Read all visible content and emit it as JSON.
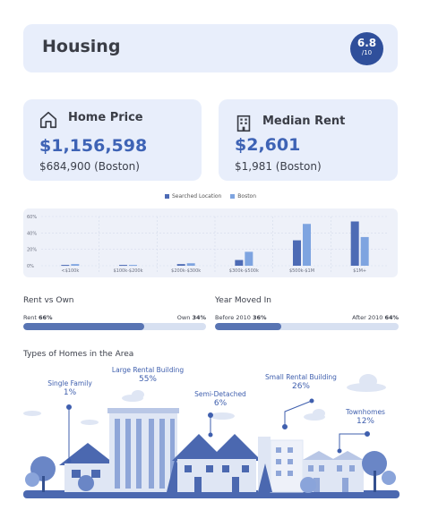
{
  "header": {
    "title": "Housing",
    "score": "6.8",
    "score_denominator": "/10"
  },
  "home_price": {
    "label": "Home Price",
    "value": "$1,156,598",
    "comparison": "$684,900 (Boston)",
    "icon": "house-outline-icon"
  },
  "median_rent": {
    "label": "Median Rent",
    "value": "$2,601",
    "comparison": "$1,981 (Boston)",
    "icon": "apartment-building-icon"
  },
  "legend": {
    "searched": "Searched Location",
    "boston": "Boston"
  },
  "colors": {
    "searched": "#4d6bb5",
    "boston": "#7ea4e0",
    "fill": "#5874b3",
    "track": "#d7e0f1",
    "card_bg": "#e8eefb",
    "accent": "#3e63b5"
  },
  "chart_data": {
    "type": "bar",
    "categories": [
      "<$100k",
      "$100k-$200k",
      "$200k-$300k",
      "$300k-$500k",
      "$500k-$1M",
      "$1M+"
    ],
    "series": [
      {
        "name": "Searched Location",
        "values": [
          1,
          1,
          2,
          7,
          31,
          54
        ]
      },
      {
        "name": "Boston",
        "values": [
          2,
          1,
          3,
          17,
          51,
          35
        ]
      }
    ],
    "yticks": [
      "60%",
      "40%",
      "20%",
      "0%"
    ],
    "ylim": [
      0,
      60
    ],
    "grid": true,
    "legend_position": "top-center"
  },
  "rent_vs_own": {
    "title": "Rent vs Own",
    "left_label": "Rent",
    "left_value": "66%",
    "right_label": "Own",
    "right_value": "34%",
    "fraction": 0.66
  },
  "year_moved": {
    "title": "Year Moved In",
    "left_label": "Before 2010",
    "left_value": "36%",
    "right_label": "After 2010",
    "right_value": "64%",
    "fraction": 0.36
  },
  "types": {
    "title": "Types of Homes in the Area",
    "items": [
      {
        "label": "Single Family",
        "pct": "1%"
      },
      {
        "label": "Large Rental Building",
        "pct": "55%"
      },
      {
        "label": "Semi-Detached",
        "pct": "6%"
      },
      {
        "label": "Small Rental Building",
        "pct": "26%"
      },
      {
        "label": "Townhomes",
        "pct": "12%"
      }
    ]
  }
}
